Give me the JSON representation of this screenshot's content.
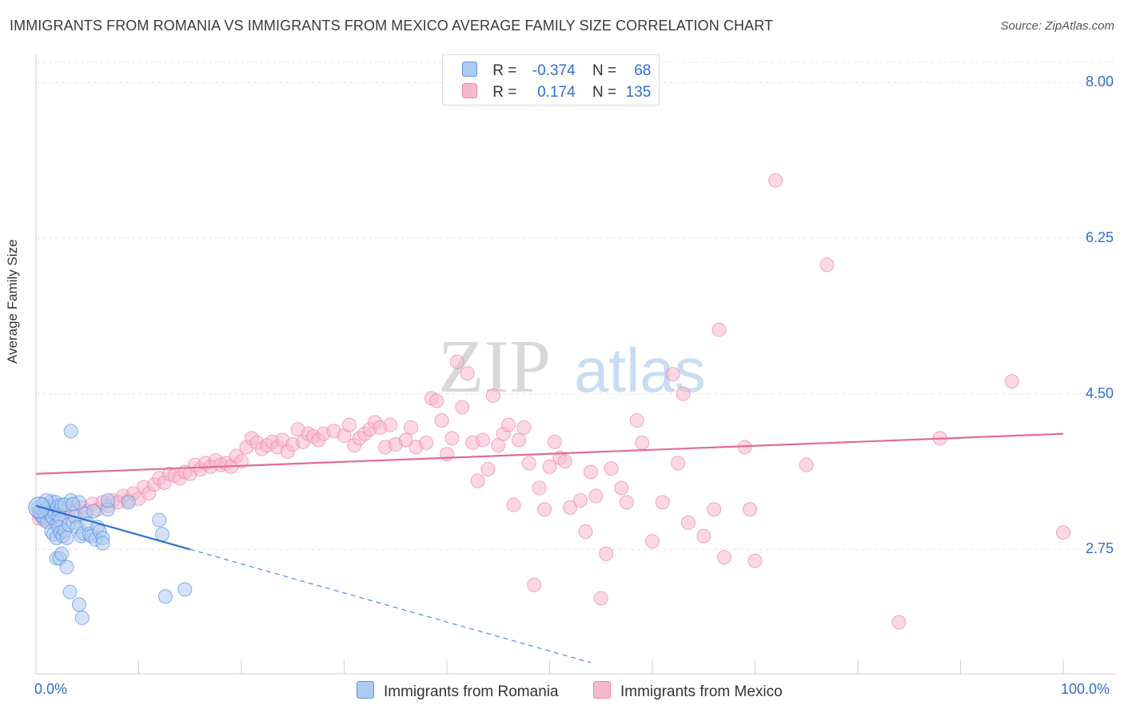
{
  "title": "IMMIGRANTS FROM ROMANIA VS IMMIGRANTS FROM MEXICO AVERAGE FAMILY SIZE CORRELATION CHART",
  "source": "Source: ZipAtlas.com",
  "watermark": {
    "zip": "ZIP",
    "atlas": "atlas"
  },
  "legend": {
    "rows": [
      {
        "r_label": "R =",
        "r_value": "-0.374",
        "n_label": "N =",
        "n_value": "68",
        "color": "#aecbf2"
      },
      {
        "r_label": "R =",
        "r_value": "0.174",
        "n_label": "N =",
        "n_value": "135",
        "color": "#f7b8cc"
      }
    ]
  },
  "bottom_legend": [
    {
      "label": "Immigrants from Romania",
      "color": "#aecbf2"
    },
    {
      "label": "Immigrants from Mexico",
      "color": "#f7b8cc"
    }
  ],
  "chart_data": {
    "type": "scatter",
    "xlabel": "",
    "ylabel": "Average Family Size",
    "xlim": [
      0,
      100
    ],
    "ylim": [
      1.35,
      8.3
    ],
    "x_tick_labels": [
      "0.0%",
      "100.0%"
    ],
    "y_ticks": [
      2.75,
      4.5,
      6.25,
      8.0
    ],
    "y_tick_labels": [
      "2.75",
      "4.50",
      "6.25",
      "8.00"
    ],
    "grid": true,
    "series": [
      {
        "name": "Immigrants from Romania",
        "color": "#5b93e0",
        "fill": "#aecbf2",
        "trend": {
          "x0": 0,
          "y0": 3.24,
          "x1": 15,
          "y1": 2.75,
          "dashed_to_x": 54
        },
        "points": [
          [
            0.2,
            3.22
          ],
          [
            0.3,
            3.18
          ],
          [
            0.4,
            3.14
          ],
          [
            0.5,
            3.2
          ],
          [
            0.6,
            3.12
          ],
          [
            0.7,
            3.26
          ],
          [
            0.8,
            3.1
          ],
          [
            0.9,
            3.16
          ],
          [
            1.0,
            3.21
          ],
          [
            1.1,
            3.06
          ],
          [
            1.2,
            3.18
          ],
          [
            1.3,
            3.24
          ],
          [
            1.4,
            3.14
          ],
          [
            1.5,
            3.29
          ],
          [
            1.6,
            3.11
          ],
          [
            1.7,
            3.2
          ],
          [
            1.8,
            3.16
          ],
          [
            1.9,
            3.28
          ],
          [
            2.0,
            3.02
          ],
          [
            2.1,
            3.23
          ],
          [
            2.2,
            3.13
          ],
          [
            2.3,
            3.19
          ],
          [
            2.4,
            3.08
          ],
          [
            2.5,
            3.25
          ],
          [
            1.5,
            2.95
          ],
          [
            1.7,
            2.92
          ],
          [
            2.0,
            2.88
          ],
          [
            2.2,
            3.0
          ],
          [
            2.4,
            2.94
          ],
          [
            2.6,
            2.9
          ],
          [
            2.8,
            2.96
          ],
          [
            3.0,
            2.88
          ],
          [
            3.2,
            3.03
          ],
          [
            3.4,
            3.3
          ],
          [
            3.6,
            3.05
          ],
          [
            3.8,
            3.12
          ],
          [
            4.0,
            3.0
          ],
          [
            4.2,
            3.28
          ],
          [
            4.4,
            2.9
          ],
          [
            4.6,
            2.93
          ],
          [
            4.8,
            3.15
          ],
          [
            5.0,
            3.04
          ],
          [
            5.2,
            2.92
          ],
          [
            5.4,
            2.9
          ],
          [
            5.6,
            3.18
          ],
          [
            5.8,
            2.86
          ],
          [
            6.0,
            3.0
          ],
          [
            6.2,
            2.95
          ],
          [
            6.5,
            2.88
          ],
          [
            7.0,
            3.2
          ],
          [
            2.0,
            2.65
          ],
          [
            2.3,
            2.65
          ],
          [
            2.5,
            2.7
          ],
          [
            3.0,
            2.55
          ],
          [
            3.3,
            2.27
          ],
          [
            4.2,
            2.13
          ],
          [
            4.5,
            1.98
          ],
          [
            3.4,
            4.08
          ],
          [
            6.5,
            2.82
          ],
          [
            7.0,
            3.3
          ],
          [
            9.0,
            3.28
          ],
          [
            12.0,
            3.08
          ],
          [
            12.3,
            2.92
          ],
          [
            12.6,
            2.22
          ],
          [
            14.5,
            2.3
          ],
          [
            1.0,
            3.3
          ],
          [
            2.8,
            3.25
          ],
          [
            3.6,
            3.26
          ]
        ]
      },
      {
        "name": "Immigrants from Mexico",
        "color": "#ee86a8",
        "fill": "#f7b8cc",
        "trend": {
          "x0": 0,
          "y0": 3.6,
          "x1": 100,
          "y1": 4.05
        },
        "points": [
          [
            0.3,
            3.1
          ],
          [
            0.5,
            3.15
          ],
          [
            0.8,
            3.08
          ],
          [
            1.0,
            3.2
          ],
          [
            1.3,
            3.12
          ],
          [
            1.6,
            3.18
          ],
          [
            2.0,
            3.15
          ],
          [
            2.4,
            3.22
          ],
          [
            2.8,
            3.2
          ],
          [
            3.2,
            3.1
          ],
          [
            3.6,
            3.25
          ],
          [
            4.0,
            3.18
          ],
          [
            4.5,
            3.22
          ],
          [
            5.0,
            3.18
          ],
          [
            5.5,
            3.26
          ],
          [
            6.0,
            3.2
          ],
          [
            6.5,
            3.28
          ],
          [
            7.0,
            3.24
          ],
          [
            7.5,
            3.3
          ],
          [
            8.0,
            3.28
          ],
          [
            8.5,
            3.35
          ],
          [
            9.0,
            3.3
          ],
          [
            9.5,
            3.38
          ],
          [
            10.0,
            3.32
          ],
          [
            10.5,
            3.45
          ],
          [
            11.0,
            3.38
          ],
          [
            11.5,
            3.48
          ],
          [
            12.0,
            3.55
          ],
          [
            12.5,
            3.5
          ],
          [
            13.0,
            3.6
          ],
          [
            13.5,
            3.58
          ],
          [
            14.0,
            3.55
          ],
          [
            14.5,
            3.62
          ],
          [
            15.0,
            3.6
          ],
          [
            15.5,
            3.7
          ],
          [
            16.0,
            3.65
          ],
          [
            16.5,
            3.72
          ],
          [
            17.0,
            3.68
          ],
          [
            17.5,
            3.75
          ],
          [
            18.0,
            3.7
          ],
          [
            18.5,
            3.72
          ],
          [
            19.0,
            3.68
          ],
          [
            19.5,
            3.8
          ],
          [
            20.0,
            3.74
          ],
          [
            20.5,
            3.9
          ],
          [
            21.0,
            4.0
          ],
          [
            21.5,
            3.95
          ],
          [
            22.0,
            3.88
          ],
          [
            22.5,
            3.92
          ],
          [
            23.0,
            3.96
          ],
          [
            23.5,
            3.9
          ],
          [
            24.0,
            3.98
          ],
          [
            24.5,
            3.85
          ],
          [
            25.0,
            3.93
          ],
          [
            25.5,
            4.1
          ],
          [
            26.0,
            3.96
          ],
          [
            26.5,
            4.05
          ],
          [
            27.0,
            4.02
          ],
          [
            27.5,
            3.98
          ],
          [
            28.0,
            4.05
          ],
          [
            29.0,
            4.08
          ],
          [
            30.0,
            4.03
          ],
          [
            30.5,
            4.15
          ],
          [
            31.0,
            3.92
          ],
          [
            31.5,
            4.0
          ],
          [
            32.0,
            4.05
          ],
          [
            32.5,
            4.1
          ],
          [
            33.0,
            4.18
          ],
          [
            33.5,
            4.12
          ],
          [
            34.0,
            3.9
          ],
          [
            34.5,
            4.15
          ],
          [
            35.0,
            3.93
          ],
          [
            36.0,
            3.98
          ],
          [
            36.5,
            4.12
          ],
          [
            37.0,
            3.9
          ],
          [
            38.0,
            3.95
          ],
          [
            38.5,
            4.45
          ],
          [
            39.0,
            4.42
          ],
          [
            39.5,
            4.2
          ],
          [
            40.0,
            3.82
          ],
          [
            40.5,
            4.0
          ],
          [
            41.0,
            4.86
          ],
          [
            41.5,
            4.35
          ],
          [
            42.0,
            4.73
          ],
          [
            42.5,
            3.95
          ],
          [
            43.0,
            3.52
          ],
          [
            43.5,
            3.98
          ],
          [
            44.0,
            3.65
          ],
          [
            44.5,
            4.48
          ],
          [
            45.0,
            3.92
          ],
          [
            45.5,
            4.05
          ],
          [
            46.0,
            4.15
          ],
          [
            46.5,
            3.25
          ],
          [
            47.0,
            3.98
          ],
          [
            47.5,
            4.12
          ],
          [
            48.0,
            3.72
          ],
          [
            48.5,
            2.35
          ],
          [
            49.0,
            3.44
          ],
          [
            49.5,
            3.2
          ],
          [
            50.0,
            3.68
          ],
          [
            50.5,
            3.96
          ],
          [
            51.0,
            3.78
          ],
          [
            51.5,
            3.74
          ],
          [
            52.0,
            3.22
          ],
          [
            53.0,
            3.3
          ],
          [
            53.5,
            2.95
          ],
          [
            54.0,
            3.62
          ],
          [
            54.5,
            3.35
          ],
          [
            55.0,
            2.2
          ],
          [
            55.5,
            2.7
          ],
          [
            56.0,
            3.66
          ],
          [
            57.0,
            3.44
          ],
          [
            57.5,
            3.28
          ],
          [
            58.5,
            4.2
          ],
          [
            59.0,
            3.95
          ],
          [
            60.0,
            2.84
          ],
          [
            61.0,
            3.28
          ],
          [
            62.0,
            4.72
          ],
          [
            62.5,
            3.72
          ],
          [
            63.0,
            4.5
          ],
          [
            63.5,
            3.05
          ],
          [
            65.0,
            2.9
          ],
          [
            66.0,
            3.2
          ],
          [
            66.5,
            5.22
          ],
          [
            67.0,
            2.66
          ],
          [
            69.0,
            3.9
          ],
          [
            70.0,
            2.62
          ],
          [
            72.0,
            6.9
          ],
          [
            75.0,
            3.7
          ],
          [
            77.0,
            5.95
          ],
          [
            84.0,
            1.93
          ],
          [
            88.0,
            4.0
          ],
          [
            95.0,
            4.64
          ],
          [
            100.0,
            2.94
          ],
          [
            69.5,
            3.2
          ]
        ]
      }
    ]
  }
}
